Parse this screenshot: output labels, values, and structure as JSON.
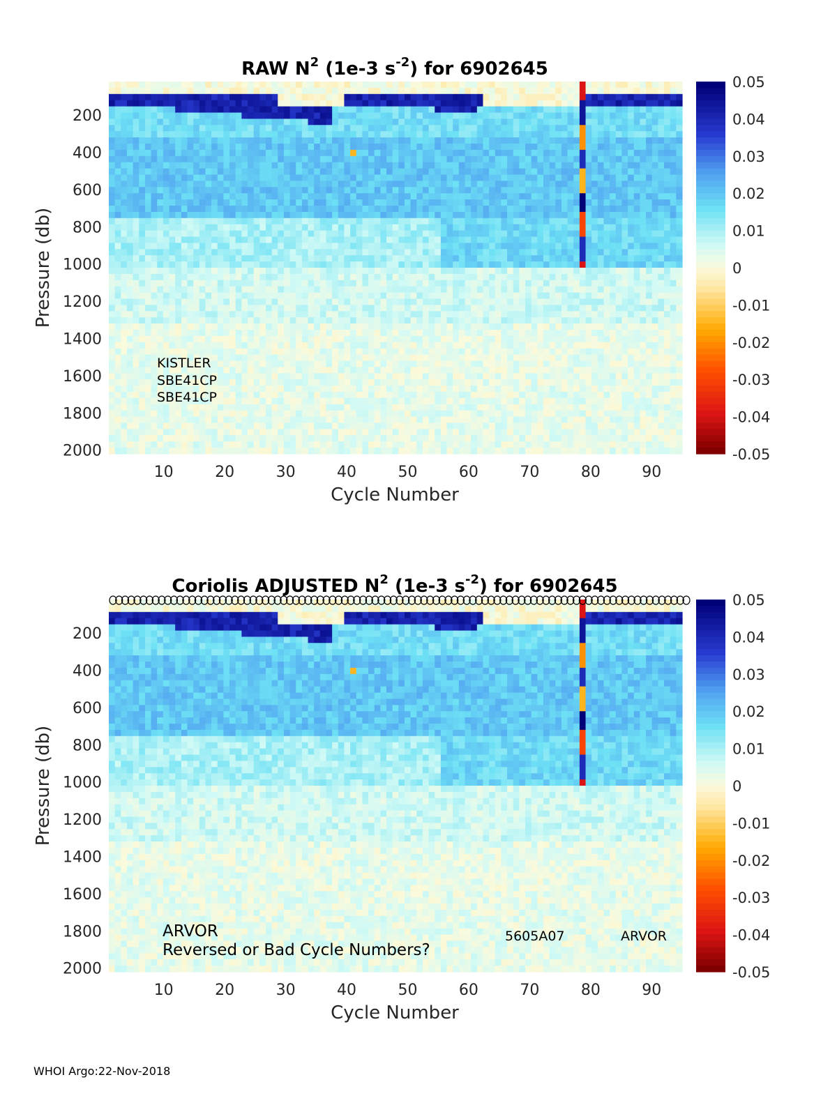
{
  "footer": "WHOI Argo:22-Nov-2018",
  "chart_data": [
    {
      "type": "heatmap",
      "title": {
        "prefix": "RAW N",
        "superscript": "2",
        "mid": " (1e-3 s",
        "superscript2": "-2",
        "suffix": ") for 6902645"
      },
      "xlabel": "Cycle Number",
      "ylabel": "Pressure (db)",
      "xlim": [
        1,
        95
      ],
      "ylim": [
        2020,
        20
      ],
      "xticks": [
        "10",
        "20",
        "30",
        "40",
        "50",
        "60",
        "70",
        "80",
        "90"
      ],
      "yticks": [
        "200",
        "400",
        "600",
        "800",
        "1000",
        "1200",
        "1400",
        "1600",
        "1800",
        "2000"
      ],
      "colorbar": {
        "ticks": [
          "0.05",
          "0.04",
          "0.03",
          "0.02",
          "0.01",
          "0",
          "-0.01",
          "-0.02",
          "-0.03",
          "-0.04",
          "-0.05"
        ],
        "range": [
          -0.05,
          0.05
        ]
      },
      "annotations": [
        "KISTLER",
        "SBE41CP",
        "SBE41CP"
      ],
      "field_description": {
        "surface_layer_value": 0.045,
        "thermocline_value": 0.018,
        "deep_value": 0.003,
        "anomalous_cycle": 79
      }
    },
    {
      "type": "heatmap",
      "title": {
        "prefix": "Coriolis  ADJUSTED N",
        "superscript": "2",
        "mid": " (1e-3 s",
        "superscript2": "-2",
        "suffix": ") for 6902645"
      },
      "xlabel": "Cycle Number",
      "ylabel": "Pressure (db)",
      "xlim": [
        1,
        95
      ],
      "ylim": [
        2020,
        20
      ],
      "xticks": [
        "10",
        "20",
        "30",
        "40",
        "50",
        "60",
        "70",
        "80",
        "90"
      ],
      "yticks": [
        "200",
        "400",
        "600",
        "800",
        "1000",
        "1200",
        "1400",
        "1600",
        "1800",
        "2000"
      ],
      "colorbar": {
        "ticks": [
          "0.05",
          "0.04",
          "0.03",
          "0.02",
          "0.01",
          "0",
          "-0.01",
          "-0.02",
          "-0.03",
          "-0.04",
          "-0.05"
        ],
        "range": [
          -0.05,
          0.05
        ]
      },
      "annotations": {
        "line1": "ARVOR",
        "line2": "Reversed or Bad Cycle Numbers?",
        "serial": "5605A07",
        "platform": "ARVOR"
      },
      "cycle_markers": "circles at top for each cycle 1-95"
    }
  ]
}
